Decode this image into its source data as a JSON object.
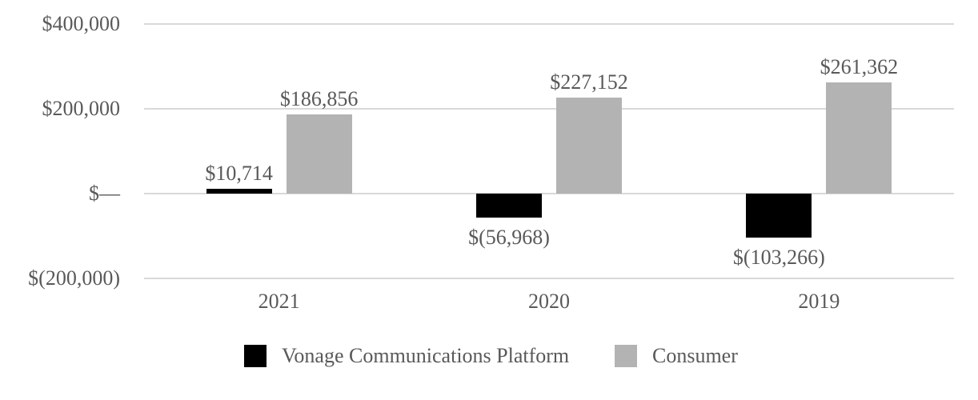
{
  "chart_data": {
    "type": "bar",
    "title": "",
    "categories": [
      "2021",
      "2020",
      "2019"
    ],
    "series": [
      {
        "name": "Vonage Communications Platform",
        "color": "#000000",
        "values": [
          10714,
          -56968,
          -103266
        ],
        "labels": [
          "$10,714",
          "$(56,968)",
          "$(103,266)"
        ]
      },
      {
        "name": "Consumer",
        "color": "#B3B3B3",
        "values": [
          186856,
          227152,
          261362
        ],
        "labels": [
          "$186,856",
          "$227,152",
          "$261,362"
        ]
      }
    ],
    "y_axis": {
      "ylim": [
        -200000,
        400000
      ],
      "gridlines": true,
      "ticks": [
        {
          "value": 400000,
          "label": "$400,000"
        },
        {
          "value": 200000,
          "label": "$200,000"
        },
        {
          "value": 0,
          "label": "$—"
        },
        {
          "value": -200000,
          "label": "$(200,000)"
        }
      ]
    },
    "xlabel": "",
    "ylabel": "",
    "legend_position": "bottom",
    "colors": {
      "text": "#595959",
      "gridline": "#D9D9D9",
      "background": "#FFFFFF"
    }
  }
}
